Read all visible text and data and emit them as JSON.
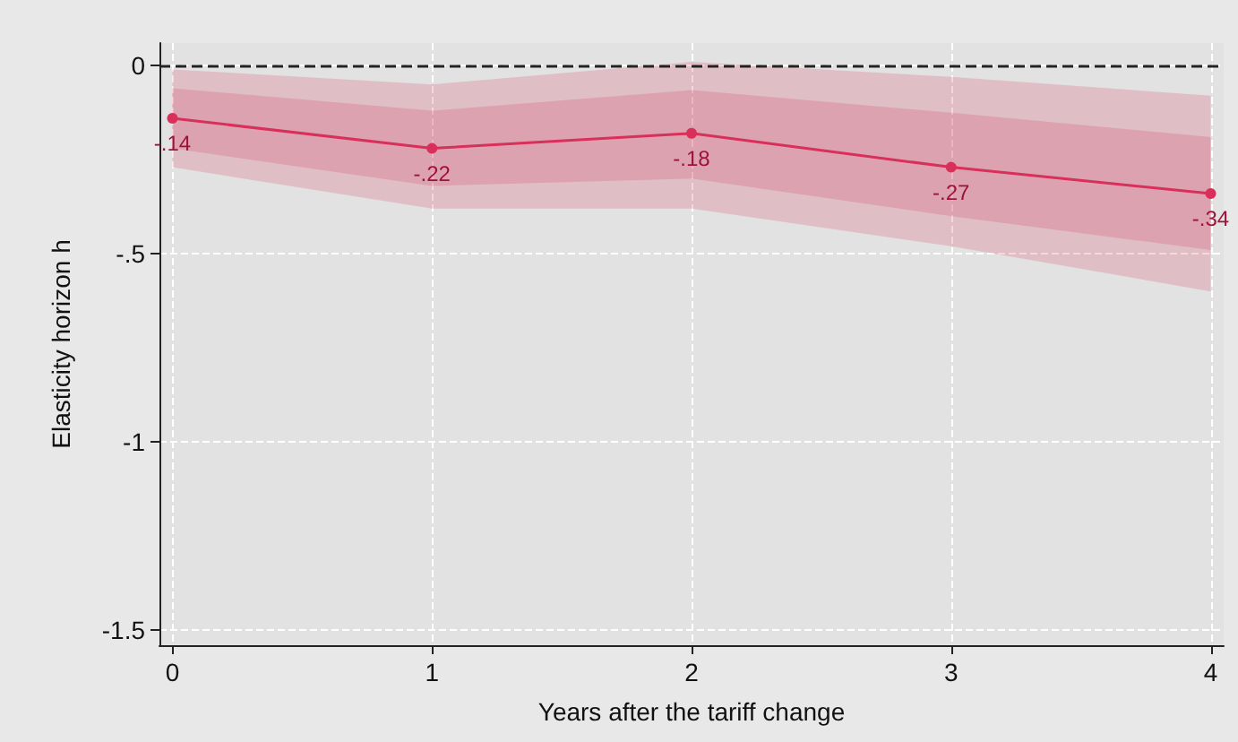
{
  "chart_data": {
    "type": "line",
    "xlabel": "Years after the tariff change",
    "ylabel": "Elasticity horizon h",
    "x": [
      0,
      1,
      2,
      3,
      4
    ],
    "series": [
      {
        "color": "#d8305a",
        "values": [
          null,
          null,
          null,
          null,
          null
        ],
        "lower": [
          -0.27,
          -0.38,
          -0.38,
          -0.48,
          -0.6
        ],
        "upper": [
          -0.01,
          -0.05,
          0.01,
          -0.03,
          -0.08
        ]
      },
      {
        "color": "#d8305a",
        "values": [
          -0.14,
          -0.22,
          -0.18,
          -0.27,
          -0.34
        ],
        "value_labels": [
          "-.14",
          "-.22",
          "-.18",
          "-.27",
          "-.34"
        ],
        "lower": [
          -0.22,
          -0.32,
          -0.3,
          -0.4,
          -0.49
        ],
        "upper": [
          -0.06,
          -0.12,
          -0.065,
          -0.125,
          -0.19
        ]
      }
    ],
    "xlim": [
      -0.05,
      4.05
    ],
    "xticks": [
      0,
      1,
      2,
      3,
      4
    ],
    "ylim": [
      -1.54,
      0.06
    ],
    "yticks": [
      {
        "value": 0,
        "label": "0"
      },
      {
        "value": -0.5,
        "label": "-.5"
      },
      {
        "value": -1,
        "label": "-1"
      },
      {
        "value": -1.5,
        "label": "-1.5"
      }
    ],
    "ref_lines": [
      {
        "axis": "y",
        "value": 0,
        "color": "#222222",
        "line_style": "dashed"
      }
    ],
    "grid": true,
    "marker": "circle",
    "line_style": "solid"
  }
}
